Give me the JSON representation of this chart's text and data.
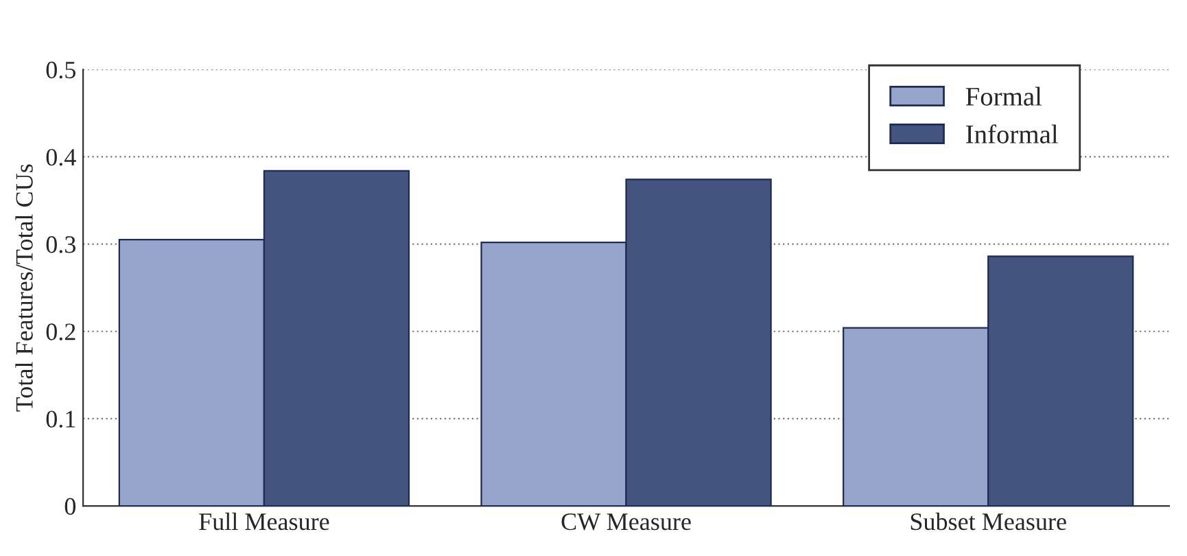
{
  "chart_data": {
    "type": "bar",
    "ylabel": "Total Features/Total CUs",
    "categories": [
      "Full Measure",
      "CW Measure",
      "Subset Measure"
    ],
    "series": [
      {
        "name": "Formal",
        "color": "#97a5cd",
        "values": [
          0.305,
          0.302,
          0.204
        ]
      },
      {
        "name": "Informal",
        "color": "#43547e",
        "values": [
          0.384,
          0.374,
          0.286
        ]
      }
    ],
    "ylim": [
      0,
      0.5
    ],
    "yticks": [
      0,
      0.1,
      0.2,
      0.3,
      0.4,
      0.5
    ],
    "grid": "y",
    "legend": "top right"
  }
}
